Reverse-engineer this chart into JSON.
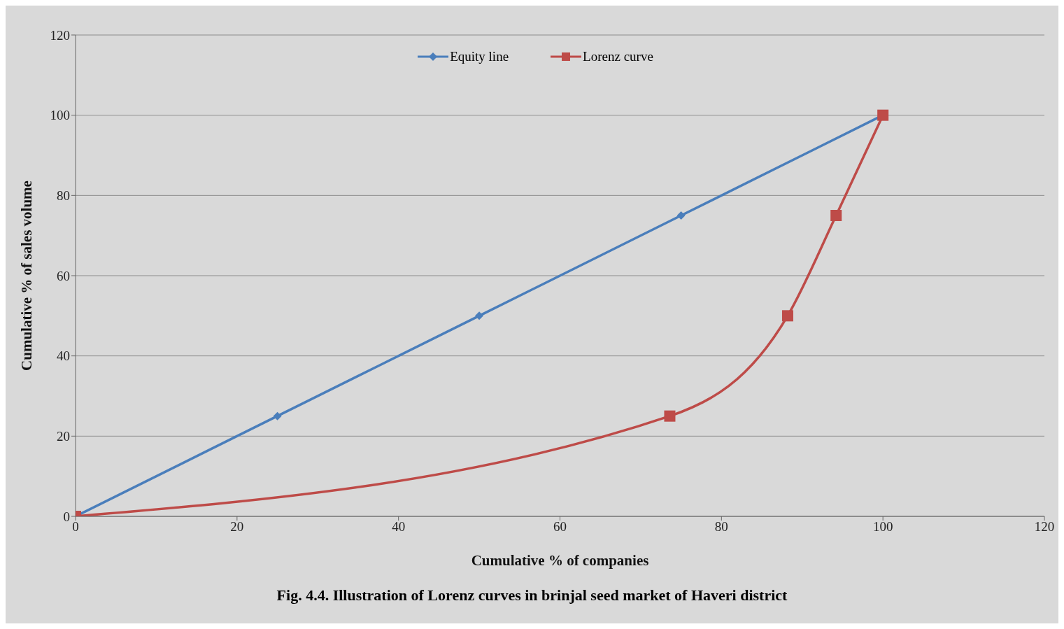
{
  "chart_data": {
    "type": "line",
    "title": "Fig. 4.4. Illustration of Lorenz curves in brinjal seed market of Haveri district",
    "xlabel": "Cumulative % of companies",
    "ylabel": "Cumulative % of sales volume",
    "series": [
      {
        "name": "Equity line",
        "color": "#4a7ebb",
        "x": [
          0,
          25,
          50,
          75,
          100
        ],
        "values": [
          0,
          25,
          50,
          75,
          100
        ],
        "marker": "diamond"
      },
      {
        "name": "Lorenz curve",
        "color": "#be4b48",
        "x": [
          0,
          73.6,
          88.2,
          94.2,
          100
        ],
        "values": [
          0,
          25,
          50,
          75,
          100
        ],
        "marker": "square"
      }
    ],
    "xlim": [
      0,
      120
    ],
    "xticks": [
      0,
      20,
      40,
      60,
      80,
      100,
      120
    ],
    "ylim": [
      0,
      120
    ],
    "yticks": [
      0,
      20,
      40,
      60,
      80,
      100,
      120
    ],
    "grid": "y",
    "legend": "top"
  }
}
